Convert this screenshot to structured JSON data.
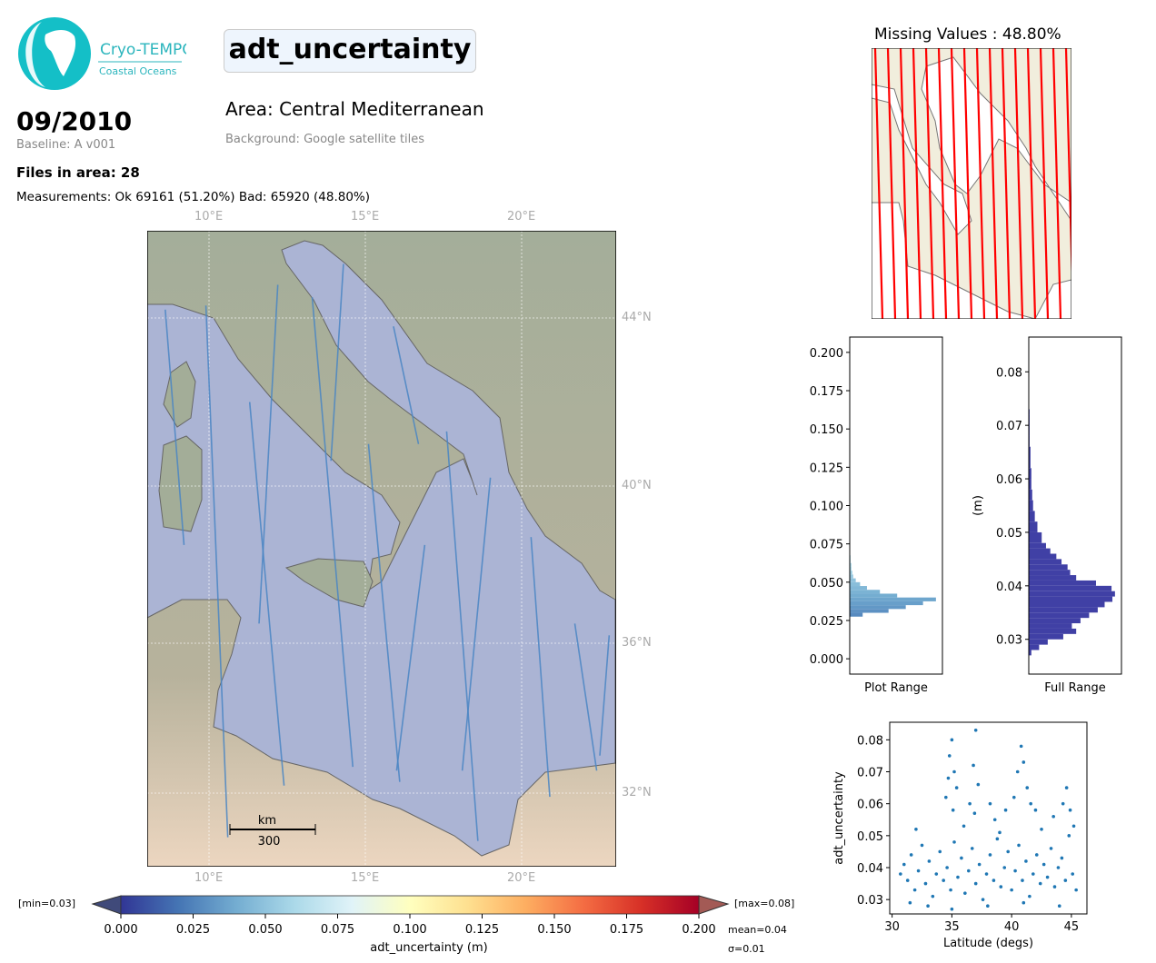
{
  "logo": {
    "name": "Cryo-TEMPO",
    "subtitle": "Coastal Oceans"
  },
  "header": {
    "variable": "adt_uncertainty",
    "date": "09/2010",
    "baseline": "Baseline: A v001",
    "area": "Area: Central Mediterranean",
    "background": "Background: Google satellite tiles",
    "files": "Files in area: 28",
    "measurements": "Measurements: Ok 69161 (51.20%) Bad: 65920 (48.80%)"
  },
  "missing": {
    "title": "Missing Values : 48.80%"
  },
  "map": {
    "lon_ticks": [
      "10°E",
      "15°E",
      "20°E"
    ],
    "lat_ticks": [
      "44°N",
      "40°N",
      "36°N",
      "32°N"
    ],
    "scale_unit": "km",
    "scale_value": "300",
    "track_color": "#4a86c4"
  },
  "colorbar": {
    "label": "adt_uncertainty (m)",
    "ticks": [
      "0.000",
      "0.025",
      "0.050",
      "0.075",
      "0.100",
      "0.125",
      "0.150",
      "0.175",
      "0.200"
    ],
    "min_label": "[min=0.03]",
    "max_label": "[max=0.08]",
    "mean_label": "mean=0.04",
    "sigma_label": "σ=0.01",
    "colors": [
      "#313695",
      "#4575b4",
      "#74add1",
      "#abd9e9",
      "#e0f3f8",
      "#ffffbf",
      "#fee090",
      "#fdae61",
      "#f46d43",
      "#d73027",
      "#a50026"
    ]
  },
  "chart_data": [
    {
      "type": "bar",
      "name": "plot-range-histogram",
      "orientation": "horizontal",
      "xlabel": "Plot Range",
      "ylim": [
        -0.01,
        0.21
      ],
      "yticks": [
        "0.000",
        "0.025",
        "0.050",
        "0.075",
        "0.100",
        "0.125",
        "0.150",
        "0.175",
        "0.200"
      ],
      "bins": [
        0.0275,
        0.03,
        0.0325,
        0.035,
        0.0375,
        0.04,
        0.0425,
        0.045,
        0.0475,
        0.05,
        0.0525,
        0.055,
        0.0575,
        0.06,
        0.0625,
        0.065
      ],
      "counts": [
        15,
        45,
        65,
        85,
        100,
        55,
        35,
        20,
        12,
        7,
        4,
        3,
        2,
        2,
        1,
        1
      ]
    },
    {
      "type": "bar",
      "name": "full-range-histogram",
      "orientation": "horizontal",
      "xlabel": "Full Range",
      "ylabel": "(m)",
      "ylim": [
        0.0235,
        0.0865
      ],
      "color": "#4040a5",
      "yticks": [
        "0.03",
        "0.04",
        "0.05",
        "0.06",
        "0.07",
        "0.08"
      ],
      "bins": [
        0.027,
        0.028,
        0.029,
        0.03,
        0.031,
        0.032,
        0.033,
        0.034,
        0.035,
        0.036,
        0.037,
        0.038,
        0.039,
        0.04,
        0.041,
        0.042,
        0.043,
        0.044,
        0.045,
        0.046,
        0.047,
        0.048,
        0.05,
        0.052,
        0.054,
        0.056,
        0.058,
        0.06,
        0.062,
        0.064,
        0.066,
        0.068,
        0.07,
        0.072
      ],
      "counts": [
        3,
        12,
        22,
        40,
        55,
        50,
        60,
        70,
        80,
        88,
        97,
        100,
        96,
        78,
        55,
        48,
        45,
        38,
        32,
        25,
        20,
        15,
        10,
        7,
        5,
        4,
        3,
        3,
        2,
        2,
        1,
        1,
        1,
        1
      ]
    },
    {
      "type": "scatter",
      "name": "latitude-scatter",
      "xlabel": "Latitude (degs)",
      "ylabel": "adt_uncertainty",
      "color": "#1f77b4",
      "xlim": [
        29.8,
        46.3
      ],
      "ylim": [
        0.0255,
        0.0855
      ],
      "xticks": [
        "30",
        "35",
        "40",
        "45"
      ],
      "yticks": [
        "0.03",
        "0.04",
        "0.05",
        "0.06",
        "0.07",
        "0.08"
      ],
      "points": [
        [
          30.7,
          0.038
        ],
        [
          31,
          0.041
        ],
        [
          31.3,
          0.036
        ],
        [
          31.6,
          0.044
        ],
        [
          31.9,
          0.033
        ],
        [
          32.2,
          0.039
        ],
        [
          32.5,
          0.047
        ],
        [
          32.8,
          0.035
        ],
        [
          33.1,
          0.042
        ],
        [
          33.4,
          0.031
        ],
        [
          33.7,
          0.038
        ],
        [
          34,
          0.045
        ],
        [
          34.3,
          0.036
        ],
        [
          34.6,
          0.04
        ],
        [
          34.9,
          0.033
        ],
        [
          35.2,
          0.048
        ],
        [
          35.5,
          0.037
        ],
        [
          35.8,
          0.043
        ],
        [
          36.1,
          0.032
        ],
        [
          36.4,
          0.039
        ],
        [
          36.7,
          0.046
        ],
        [
          37,
          0.035
        ],
        [
          37.3,
          0.041
        ],
        [
          37.6,
          0.03
        ],
        [
          37.9,
          0.038
        ],
        [
          38.2,
          0.044
        ],
        [
          38.5,
          0.036
        ],
        [
          38.8,
          0.049
        ],
        [
          39.1,
          0.034
        ],
        [
          39.4,
          0.04
        ],
        [
          39.7,
          0.045
        ],
        [
          40,
          0.033
        ],
        [
          40.3,
          0.039
        ],
        [
          40.6,
          0.047
        ],
        [
          40.9,
          0.036
        ],
        [
          41.2,
          0.042
        ],
        [
          41.5,
          0.031
        ],
        [
          41.8,
          0.038
        ],
        [
          42.1,
          0.044
        ],
        [
          42.4,
          0.035
        ],
        [
          42.7,
          0.041
        ],
        [
          43,
          0.037
        ],
        [
          43.3,
          0.046
        ],
        [
          43.6,
          0.034
        ],
        [
          43.9,
          0.04
        ],
        [
          44.2,
          0.043
        ],
        [
          44.5,
          0.036
        ],
        [
          44.8,
          0.05
        ],
        [
          45.1,
          0.038
        ],
        [
          45.4,
          0.033
        ],
        [
          34.5,
          0.062
        ],
        [
          34.8,
          0.075
        ],
        [
          35,
          0.08
        ],
        [
          35.2,
          0.07
        ],
        [
          35.4,
          0.065
        ],
        [
          35.1,
          0.058
        ],
        [
          34.7,
          0.068
        ],
        [
          36.5,
          0.06
        ],
        [
          36.8,
          0.072
        ],
        [
          37,
          0.083
        ],
        [
          37.2,
          0.066
        ],
        [
          36.9,
          0.057
        ],
        [
          38.2,
          0.06
        ],
        [
          38.6,
          0.055
        ],
        [
          39.5,
          0.058
        ],
        [
          40.2,
          0.062
        ],
        [
          40.5,
          0.07
        ],
        [
          40.8,
          0.078
        ],
        [
          41,
          0.073
        ],
        [
          41.3,
          0.065
        ],
        [
          41.6,
          0.06
        ],
        [
          42,
          0.058
        ],
        [
          43.5,
          0.056
        ],
        [
          44.3,
          0.06
        ],
        [
          44.6,
          0.065
        ],
        [
          44.9,
          0.058
        ],
        [
          45.2,
          0.053
        ],
        [
          31.5,
          0.029
        ],
        [
          33,
          0.028
        ],
        [
          35,
          0.027
        ],
        [
          38,
          0.028
        ],
        [
          41,
          0.029
        ],
        [
          44,
          0.028
        ],
        [
          32,
          0.052
        ],
        [
          36,
          0.053
        ],
        [
          39,
          0.051
        ],
        [
          42.5,
          0.052
        ]
      ]
    },
    {
      "type": "line",
      "name": "satellite-tracks",
      "units": "lon/lat degrees",
      "tracks": [
        [
          [
            8.6,
            44.2
          ],
          [
            9.2,
            38.5
          ]
        ],
        [
          [
            9.9,
            44.3
          ],
          [
            10.6,
            30.8
          ]
        ],
        [
          [
            11.3,
            42
          ],
          [
            12.4,
            32.2
          ]
        ],
        [
          [
            12.2,
            44.8
          ],
          [
            11.6,
            36.5
          ]
        ],
        [
          [
            13.3,
            44.5
          ],
          [
            14.6,
            32.7
          ]
        ],
        [
          [
            14.3,
            45.3
          ],
          [
            13.9,
            40.6
          ]
        ],
        [
          [
            15.1,
            41
          ],
          [
            16.1,
            32.3
          ]
        ],
        [
          [
            15.9,
            43.8
          ],
          [
            16.7,
            41
          ]
        ],
        [
          [
            16.9,
            38.5
          ],
          [
            16.0,
            32.6
          ]
        ],
        [
          [
            17.6,
            41.3
          ],
          [
            18.6,
            30.7
          ]
        ],
        [
          [
            19,
            40.2
          ],
          [
            18.1,
            32.6
          ]
        ],
        [
          [
            20.3,
            38.7
          ],
          [
            20.9,
            31.9
          ]
        ],
        [
          [
            21.7,
            36.5
          ],
          [
            22.4,
            32.6
          ]
        ],
        [
          [
            22.8,
            36.2
          ],
          [
            22.5,
            33.0
          ]
        ]
      ]
    }
  ]
}
